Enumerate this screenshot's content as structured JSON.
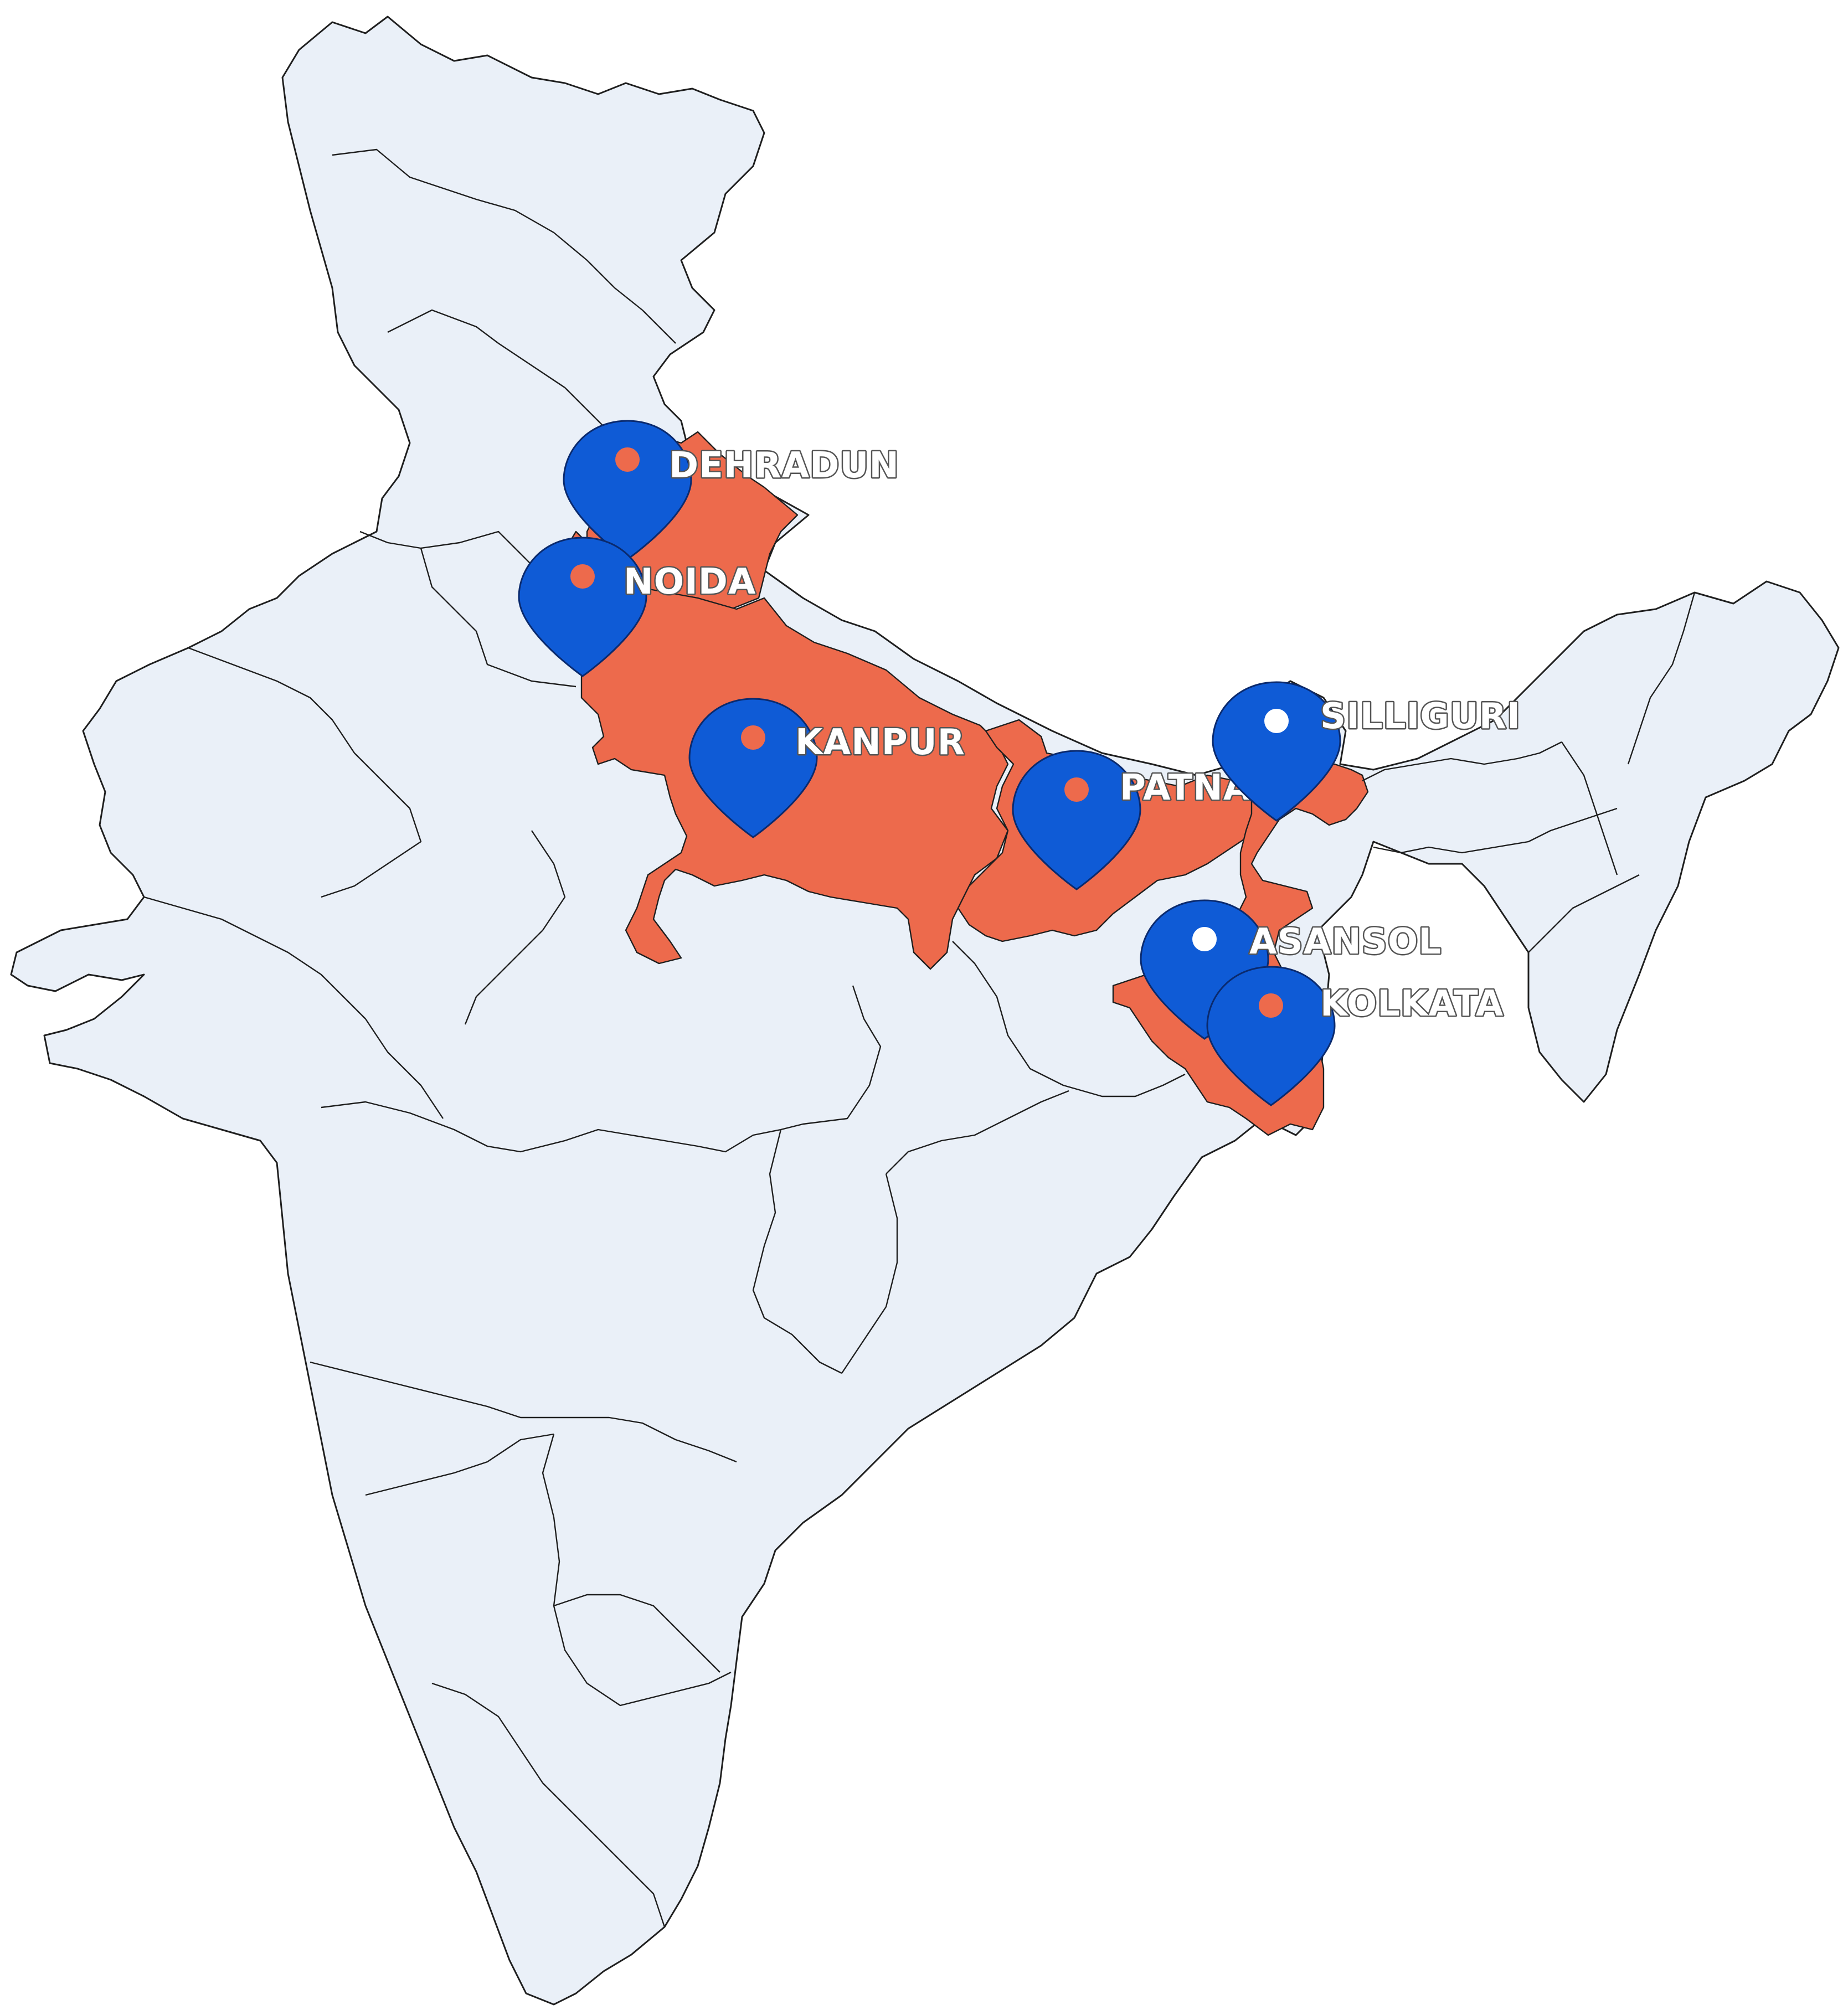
{
  "map": {
    "colors": {
      "land": "#eaf0f8",
      "highlight": "#ed6a4c",
      "pin": "#0f5bd6",
      "pin_dot_orange": "#ed6a4c",
      "pin_dot_white": "#ffffff",
      "label_fill": "#ffffff",
      "label_outline": "#555555",
      "border": "#1f1f1f"
    },
    "highlighted_regions": [
      "uttarakhand",
      "uttar-pradesh",
      "bihar",
      "west-bengal"
    ],
    "markers": [
      {
        "id": "dehradun",
        "label": "DEHRADUN",
        "icon": "map-pin-icon",
        "dot": "orange"
      },
      {
        "id": "noida",
        "label": "NOIDA",
        "icon": "map-pin-icon",
        "dot": "orange"
      },
      {
        "id": "kanpur",
        "label": "KANPUR",
        "icon": "map-pin-icon",
        "dot": "orange"
      },
      {
        "id": "patna",
        "label": "PATNA",
        "icon": "map-pin-icon",
        "dot": "orange"
      },
      {
        "id": "silliguri",
        "label": "SILLIGURI",
        "icon": "map-pin-icon",
        "dot": "white"
      },
      {
        "id": "asansol",
        "label": "ASANSOL",
        "icon": "map-pin-icon",
        "dot": "white"
      },
      {
        "id": "kolkata",
        "label": "KOLKATA",
        "icon": "map-pin-icon",
        "dot": "orange"
      }
    ]
  }
}
